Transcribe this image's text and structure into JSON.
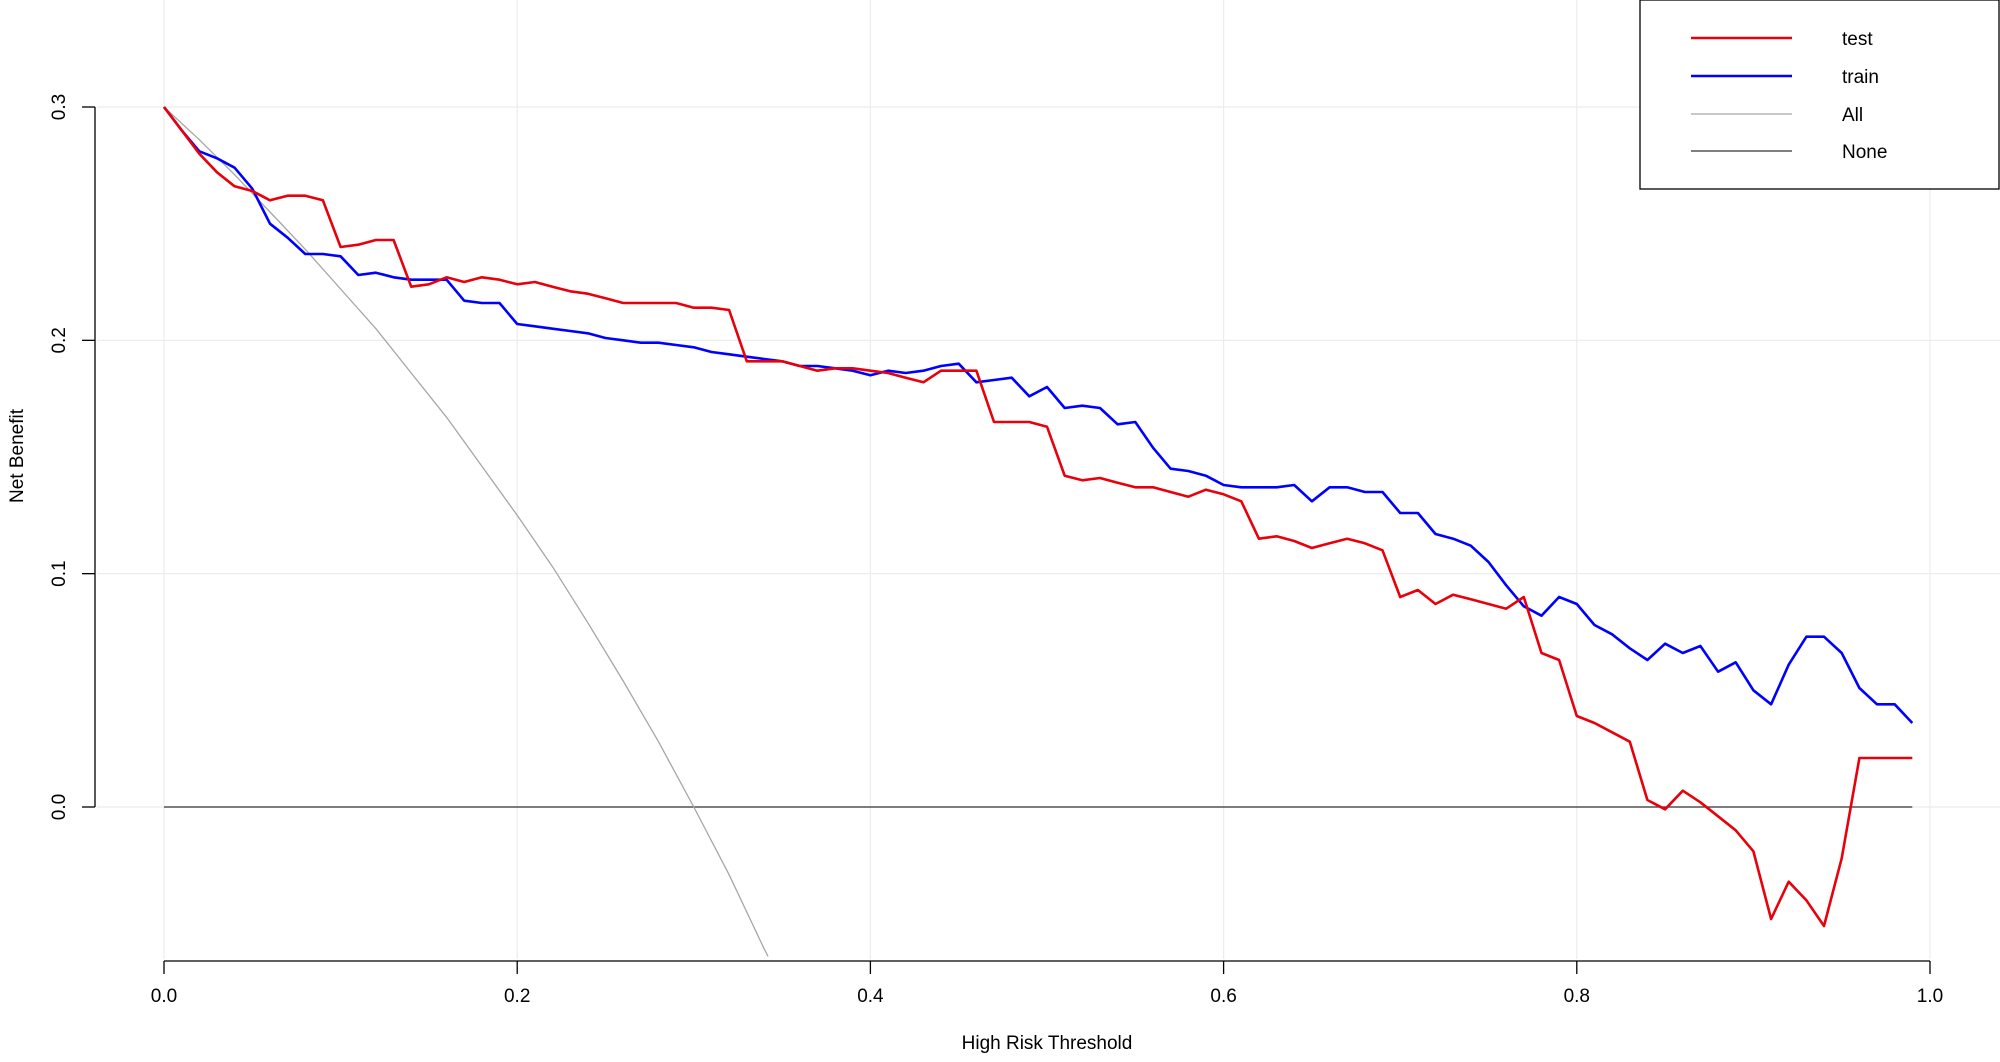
{
  "chart_data": {
    "type": "line",
    "title": "",
    "xlabel": "High Risk Threshold",
    "ylabel": "Net Benefit",
    "xlim": [
      0,
      1
    ],
    "ylim": [
      -0.065,
      0.3
    ],
    "x_ticks": [
      "0.0",
      "0.2",
      "0.4",
      "0.6",
      "0.8",
      "1.0"
    ],
    "y_ticks": [
      "0.0",
      "0.1",
      "0.2",
      "0.3"
    ],
    "grid": true,
    "legend_position": "top-right",
    "prevalence": 0.3,
    "series": [
      {
        "name": "test",
        "color": "#e8000b",
        "x": [
          0.0,
          0.01,
          0.02,
          0.03,
          0.04,
          0.05,
          0.06,
          0.07,
          0.08,
          0.09,
          0.1,
          0.11,
          0.12,
          0.13,
          0.14,
          0.15,
          0.16,
          0.17,
          0.18,
          0.19,
          0.2,
          0.21,
          0.22,
          0.23,
          0.24,
          0.25,
          0.26,
          0.27,
          0.28,
          0.29,
          0.3,
          0.31,
          0.32,
          0.33,
          0.34,
          0.35,
          0.36,
          0.37,
          0.38,
          0.39,
          0.4,
          0.41,
          0.42,
          0.43,
          0.44,
          0.45,
          0.46,
          0.47,
          0.48,
          0.49,
          0.5,
          0.51,
          0.52,
          0.53,
          0.54,
          0.55,
          0.56,
          0.57,
          0.58,
          0.59,
          0.6,
          0.61,
          0.62,
          0.63,
          0.64,
          0.65,
          0.66,
          0.67,
          0.68,
          0.69,
          0.7,
          0.71,
          0.72,
          0.73,
          0.74,
          0.75,
          0.76,
          0.77,
          0.78,
          0.79,
          0.8,
          0.81,
          0.82,
          0.83,
          0.84,
          0.85,
          0.86,
          0.87,
          0.88,
          0.89,
          0.9,
          0.91,
          0.92,
          0.93,
          0.94,
          0.95,
          0.96,
          0.97,
          0.98,
          0.99
        ],
        "y": [
          0.3,
          0.29,
          0.28,
          0.272,
          0.266,
          0.264,
          0.26,
          0.262,
          0.262,
          0.26,
          0.24,
          0.241,
          0.243,
          0.243,
          0.223,
          0.224,
          0.227,
          0.225,
          0.227,
          0.226,
          0.224,
          0.225,
          0.223,
          0.221,
          0.22,
          0.218,
          0.216,
          0.216,
          0.216,
          0.216,
          0.214,
          0.214,
          0.213,
          0.191,
          0.191,
          0.191,
          0.189,
          0.187,
          0.188,
          0.188,
          0.187,
          0.186,
          0.184,
          0.182,
          0.187,
          0.187,
          0.187,
          0.165,
          0.165,
          0.165,
          0.163,
          0.142,
          0.14,
          0.141,
          0.139,
          0.137,
          0.137,
          0.135,
          0.133,
          0.136,
          0.134,
          0.131,
          0.115,
          0.116,
          0.114,
          0.111,
          0.113,
          0.115,
          0.113,
          0.11,
          0.09,
          0.093,
          0.087,
          0.091,
          0.089,
          0.087,
          0.085,
          0.09,
          0.066,
          0.063,
          0.039,
          0.036,
          0.032,
          0.028,
          0.003,
          -0.001,
          0.007,
          0.002,
          -0.004,
          -0.01,
          -0.019,
          -0.048,
          -0.032,
          -0.04,
          -0.051,
          -0.022,
          0.021,
          0.021,
          0.021,
          0.021
        ]
      },
      {
        "name": "train",
        "color": "#0000ff",
        "x": [
          0.0,
          0.01,
          0.02,
          0.03,
          0.04,
          0.05,
          0.06,
          0.07,
          0.08,
          0.09,
          0.1,
          0.11,
          0.12,
          0.13,
          0.14,
          0.15,
          0.16,
          0.17,
          0.18,
          0.19,
          0.2,
          0.21,
          0.22,
          0.23,
          0.24,
          0.25,
          0.26,
          0.27,
          0.28,
          0.29,
          0.3,
          0.31,
          0.32,
          0.33,
          0.34,
          0.35,
          0.36,
          0.37,
          0.38,
          0.39,
          0.4,
          0.41,
          0.42,
          0.43,
          0.44,
          0.45,
          0.46,
          0.47,
          0.48,
          0.49,
          0.5,
          0.51,
          0.52,
          0.53,
          0.54,
          0.55,
          0.56,
          0.57,
          0.58,
          0.59,
          0.6,
          0.61,
          0.62,
          0.63,
          0.64,
          0.65,
          0.66,
          0.67,
          0.68,
          0.69,
          0.7,
          0.71,
          0.72,
          0.73,
          0.74,
          0.75,
          0.76,
          0.77,
          0.78,
          0.79,
          0.8,
          0.81,
          0.82,
          0.83,
          0.84,
          0.85,
          0.86,
          0.87,
          0.88,
          0.89,
          0.9,
          0.91,
          0.92,
          0.93,
          0.94,
          0.95,
          0.96,
          0.97,
          0.98,
          0.99
        ],
        "y": [
          0.3,
          0.29,
          0.281,
          0.278,
          0.274,
          0.265,
          0.25,
          0.244,
          0.237,
          0.237,
          0.236,
          0.228,
          0.229,
          0.227,
          0.226,
          0.226,
          0.226,
          0.217,
          0.216,
          0.216,
          0.207,
          0.206,
          0.205,
          0.204,
          0.203,
          0.201,
          0.2,
          0.199,
          0.199,
          0.198,
          0.197,
          0.195,
          0.194,
          0.193,
          0.192,
          0.191,
          0.189,
          0.189,
          0.188,
          0.187,
          0.185,
          0.187,
          0.186,
          0.187,
          0.189,
          0.19,
          0.182,
          0.183,
          0.184,
          0.176,
          0.18,
          0.171,
          0.172,
          0.171,
          0.164,
          0.165,
          0.154,
          0.145,
          0.144,
          0.142,
          0.138,
          0.137,
          0.137,
          0.137,
          0.138,
          0.131,
          0.137,
          0.137,
          0.135,
          0.135,
          0.126,
          0.126,
          0.117,
          0.115,
          0.112,
          0.105,
          0.095,
          0.086,
          0.082,
          0.09,
          0.087,
          0.078,
          0.074,
          0.068,
          0.063,
          0.07,
          0.066,
          0.069,
          0.058,
          0.062,
          0.05,
          0.044,
          0.061,
          0.073,
          0.073,
          0.066,
          0.051,
          0.044,
          0.044,
          0.036
        ]
      },
      {
        "name": "All",
        "color": "#a6a6a6",
        "x": [
          0.0,
          0.02,
          0.04,
          0.06,
          0.08,
          0.1,
          0.12,
          0.14,
          0.16,
          0.18,
          0.2,
          0.22,
          0.24,
          0.26,
          0.28,
          0.3,
          0.32,
          0.34,
          0.342
        ],
        "y": [
          0.3,
          0.286,
          0.271,
          0.255,
          0.239,
          0.222,
          0.205,
          0.186,
          0.167,
          0.146,
          0.125,
          0.103,
          0.079,
          0.054,
          0.028,
          0.0,
          -0.029,
          -0.061,
          -0.064
        ]
      },
      {
        "name": "None",
        "color": "#333333",
        "x": [
          0.0,
          0.99
        ],
        "y": [
          0.0,
          0.0
        ]
      }
    ]
  }
}
